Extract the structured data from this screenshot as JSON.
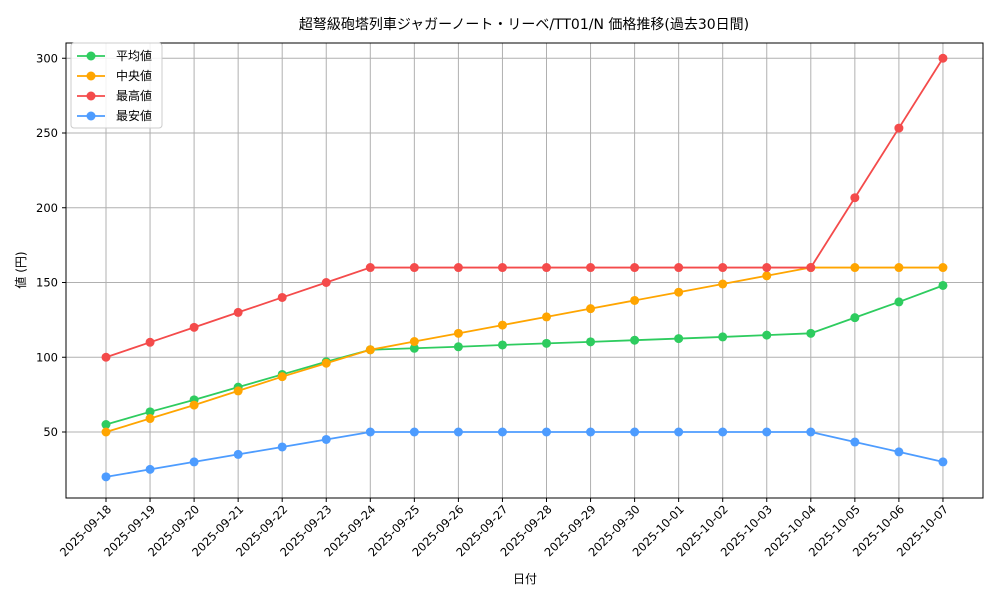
{
  "chart_data": {
    "type": "line",
    "title": "超弩級砲塔列車ジャガーノート・リーベ/TT01/N 価格推移(過去30日間)",
    "xlabel": "日付",
    "ylabel": "値 (円)",
    "ylim": [
      13,
      314
    ],
    "yticks": [
      50,
      100,
      150,
      200,
      250,
      300
    ],
    "grid": true,
    "legend_position": "upper left",
    "categories": [
      "2025-09-18",
      "2025-09-19",
      "2025-09-20",
      "2025-09-21",
      "2025-09-22",
      "2025-09-23",
      "2025-09-24",
      "2025-09-25",
      "2025-09-26",
      "2025-09-27",
      "2025-09-28",
      "2025-09-29",
      "2025-09-30",
      "2025-10-01",
      "2025-10-02",
      "2025-10-03",
      "2025-10-04",
      "2025-10-05",
      "2025-10-06",
      "2025-10-07"
    ],
    "series": [
      {
        "name": "平均値",
        "color": "#2ecc5f",
        "values": [
          55,
          63.5,
          71.5,
          80,
          88.5,
          97,
          105,
          106,
          107,
          108.2,
          109.3,
          110.3,
          111.4,
          112.5,
          113.6,
          114.8,
          116,
          126.5,
          137,
          148
        ]
      },
      {
        "name": "中央値",
        "color": "#ffa500",
        "values": [
          50,
          59,
          68,
          77.5,
          87,
          96,
          105,
          110.5,
          116,
          121.5,
          127,
          132.5,
          138,
          143.5,
          149,
          154.5,
          160,
          160,
          160,
          160
        ]
      },
      {
        "name": "最高値",
        "color": "#f44b4b",
        "values": [
          100,
          110,
          120,
          130,
          140,
          150,
          160,
          160,
          160,
          160,
          160,
          160,
          160,
          160,
          160,
          160,
          160,
          206.7,
          253.3,
          300
        ]
      },
      {
        "name": "最安値",
        "color": "#4d9cff",
        "values": [
          20,
          25,
          30,
          35,
          40,
          45,
          50,
          50,
          50,
          50,
          50,
          50,
          50,
          50,
          50,
          50,
          50,
          43.3,
          36.7,
          30
        ]
      }
    ]
  }
}
